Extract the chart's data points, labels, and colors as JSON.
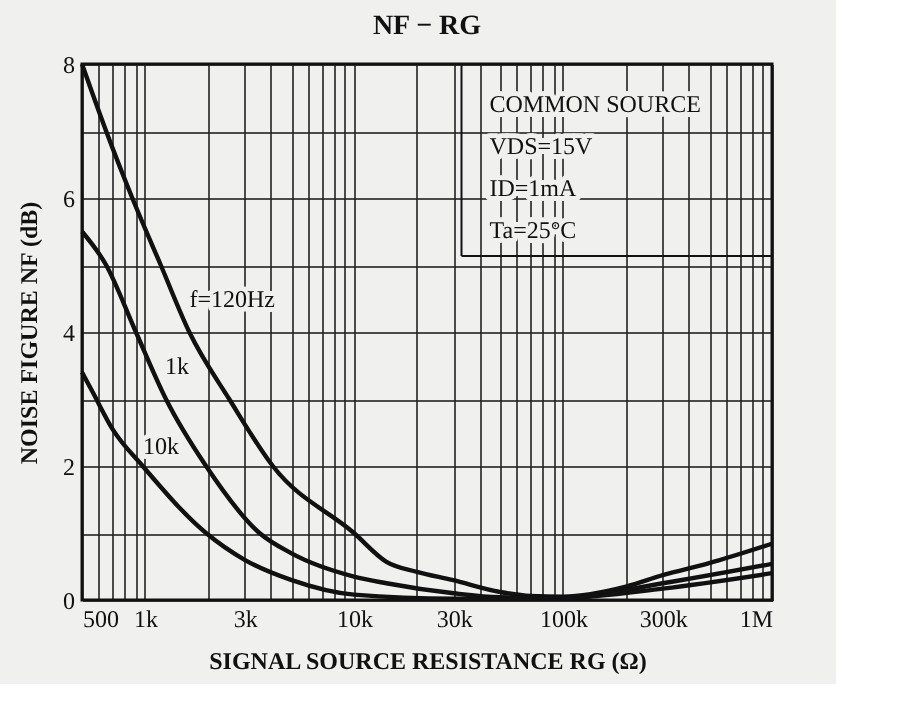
{
  "chart_data": {
    "type": "line",
    "title": "NF − RG",
    "xlabel": "SIGNAL SOURCE RESISTANCE  RG  (Ω)",
    "ylabel": "NOISE FIGURE  NF  (dB)",
    "log": "x",
    "grid": true,
    "marker": "none",
    "line_style": "solid",
    "xlim": [
      500,
      1000000
    ],
    "xticks": [
      {
        "value": 500,
        "label": "500"
      },
      {
        "value": 600,
        "label": null
      },
      {
        "value": 700,
        "label": null
      },
      {
        "value": 800,
        "label": null
      },
      {
        "value": 900,
        "label": null
      },
      {
        "value": 1000,
        "label": "1k"
      },
      {
        "value": 2000,
        "label": null
      },
      {
        "value": 3000,
        "label": "3k"
      },
      {
        "value": 4000,
        "label": null
      },
      {
        "value": 5000,
        "label": null
      },
      {
        "value": 6000,
        "label": null
      },
      {
        "value": 7000,
        "label": null
      },
      {
        "value": 8000,
        "label": null
      },
      {
        "value": 9000,
        "label": null
      },
      {
        "value": 10000,
        "label": "10k"
      },
      {
        "value": 20000,
        "label": null
      },
      {
        "value": 30000,
        "label": "30k"
      },
      {
        "value": 40000,
        "label": null
      },
      {
        "value": 50000,
        "label": null
      },
      {
        "value": 60000,
        "label": null
      },
      {
        "value": 70000,
        "label": null
      },
      {
        "value": 80000,
        "label": null
      },
      {
        "value": 90000,
        "label": null
      },
      {
        "value": 100000,
        "label": "100k"
      },
      {
        "value": 200000,
        "label": null
      },
      {
        "value": 300000,
        "label": "300k"
      },
      {
        "value": 400000,
        "label": null
      },
      {
        "value": 500000,
        "label": null
      },
      {
        "value": 600000,
        "label": null
      },
      {
        "value": 700000,
        "label": null
      },
      {
        "value": 800000,
        "label": null
      },
      {
        "value": 900000,
        "label": null
      },
      {
        "value": 1000000,
        "label": "1M"
      }
    ],
    "ylim": [
      0,
      8
    ],
    "yticks": [
      0,
      {
        "value": 1,
        "label": null
      },
      2,
      {
        "value": 3,
        "label": null
      },
      4,
      {
        "value": 5,
        "label": null
      },
      6,
      {
        "value": 7,
        "label": null
      },
      8
    ],
    "series": [
      {
        "color": "#111111",
        "x": [
          500,
          652,
          870,
          1190,
          1630,
          2530,
          4090,
          10000,
          14300,
          20000,
          29500,
          50000,
          70000,
          100000,
          200000,
          300000,
          500000,
          1000000
        ],
        "values": [
          8,
          7,
          6,
          5,
          4,
          3,
          2,
          1,
          0.57,
          0.42,
          0.3,
          0.12,
          0.06,
          0.05,
          0.2,
          0.37,
          0.55,
          0.84
        ]
      },
      {
        "color": "#111111",
        "x": [
          500,
          652,
          905,
          1260,
          1960,
          3530,
          5000,
          10000,
          14300,
          30000,
          50000,
          100000,
          300000,
          1000000
        ],
        "values": [
          5.5,
          5,
          4,
          3,
          2,
          1,
          0.7,
          0.35,
          0.25,
          0.1,
          0.04,
          0.03,
          0.25,
          0.54
        ]
      },
      {
        "color": "#111111",
        "x": [
          500,
          563,
          700,
          975,
          1960,
          3000,
          5000,
          10000,
          30000,
          100000,
          300000,
          1000000
        ],
        "values": [
          3.4,
          3.1,
          2.55,
          2,
          1,
          0.6,
          0.3,
          0.08,
          0.02,
          0.03,
          0.17,
          0.4
        ]
      }
    ],
    "annotations": [
      "COMMON SOURCE",
      "VDS=15V",
      "ID=1mA",
      "Ta=25°C",
      {
        "text": "f=120Hz",
        "x": 1400,
        "y": 4.5
      },
      {
        "text": "1k",
        "x": 1070,
        "y": 3.5
      },
      {
        "text": "10k",
        "x": 840,
        "y": 2.3
      }
    ]
  }
}
